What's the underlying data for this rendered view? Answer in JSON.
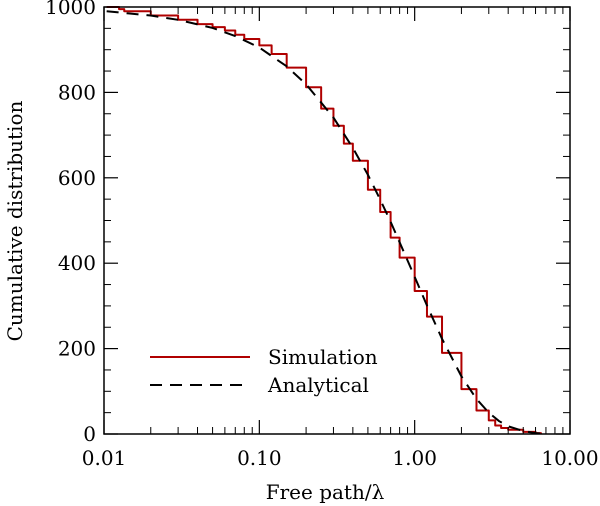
{
  "chart_data": {
    "type": "line",
    "title": "",
    "xlabel": "Free path/λ",
    "ylabel": "Cumulative distribution",
    "xscale": "log",
    "xlim": [
      0.01,
      10.0
    ],
    "ylim": [
      0,
      1000
    ],
    "x_ticks": [
      0.01,
      0.1,
      1.0,
      10.0
    ],
    "x_tick_labels": [
      "0.01",
      "0.10",
      "1.00",
      "10.00"
    ],
    "y_ticks": [
      0,
      200,
      400,
      600,
      800,
      1000
    ],
    "y_tick_labels": [
      "0",
      "200",
      "400",
      "600",
      "800",
      "1000"
    ],
    "grid": false,
    "legend_position": "bottom-left",
    "series": [
      {
        "name": "Simulation",
        "color": "#b00000",
        "style": "solid-step",
        "x": [
          0.0104,
          0.0125,
          0.0135,
          0.02,
          0.03,
          0.04,
          0.05,
          0.06,
          0.07,
          0.08,
          0.1,
          0.12,
          0.15,
          0.2,
          0.25,
          0.3,
          0.35,
          0.4,
          0.5,
          0.6,
          0.7,
          0.8,
          1.0,
          1.2,
          1.5,
          2.0,
          2.5,
          3.0,
          3.3,
          3.6,
          4.0,
          5.0,
          6.0,
          6.5
        ],
        "y": [
          1000,
          995,
          990,
          980,
          970,
          960,
          953,
          945,
          935,
          925,
          910,
          890,
          858,
          812,
          762,
          722,
          680,
          640,
          572,
          520,
          460,
          413,
          335,
          275,
          190,
          105,
          55,
          32,
          20,
          14,
          10,
          5,
          2,
          0
        ]
      },
      {
        "name": "Analytical",
        "color": "#000000",
        "style": "dashed",
        "x": [
          0.0104,
          0.02,
          0.03,
          0.05,
          0.07,
          0.1,
          0.15,
          0.2,
          0.3,
          0.4,
          0.5,
          0.6,
          0.7,
          0.8,
          1.0,
          1.2,
          1.5,
          2.0,
          2.5,
          3.0,
          3.5,
          4.0,
          5.0,
          6.0,
          6.5
        ],
        "y": [
          990,
          980,
          970,
          951,
          932,
          905,
          861,
          819,
          741,
          670,
          607,
          549,
          497,
          449,
          368,
          301,
          223,
          135,
          82,
          50,
          30,
          18,
          7,
          2,
          1
        ]
      }
    ]
  }
}
